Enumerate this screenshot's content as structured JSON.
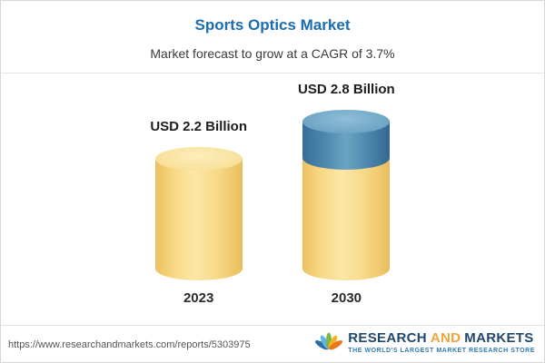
{
  "chart_data": {
    "type": "bar",
    "title": "Sports Optics Market",
    "subtitle": "Market forecast to grow at a CAGR of 3.7%",
    "cagr_percent": 3.7,
    "categories": [
      "2023",
      "2030"
    ],
    "values": [
      2.2,
      2.8
    ],
    "value_labels": [
      "USD 2.2 Billion",
      "USD 2.8 Billion"
    ],
    "unit": "USD Billion",
    "legend": "none",
    "grid": false,
    "colors": {
      "title_text": "#1b6cb1",
      "bar_yellow": "#f8da8a",
      "growth_segment_blue": "#4d87ae"
    }
  },
  "footer": {
    "url": "https://www.researchandmarkets.com/reports/5303975",
    "logo": {
      "research": "RESEARCH",
      "and": "AND",
      "markets": "MARKETS",
      "tagline": "THE WORLD'S LARGEST MARKET RESEARCH STORE"
    }
  }
}
